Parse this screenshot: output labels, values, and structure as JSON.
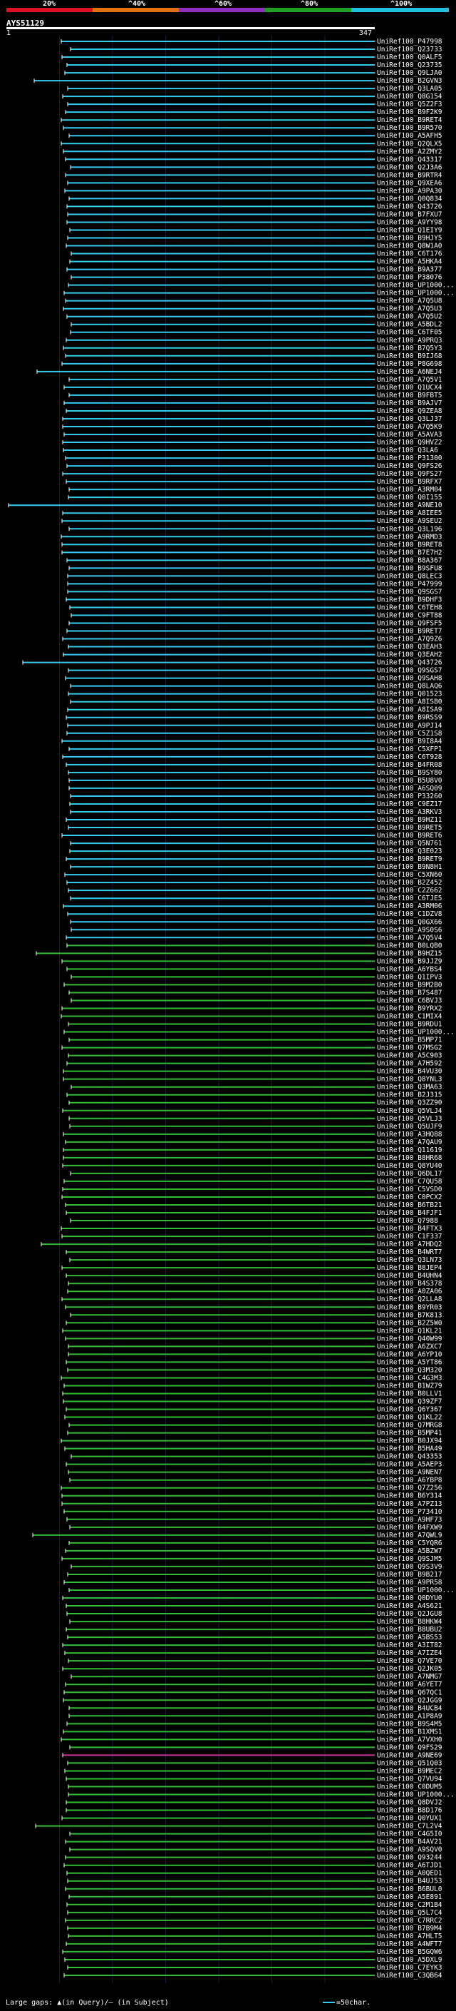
{
  "legend": {
    "labels": [
      "20%",
      "^40%",
      "^60%",
      "^80%",
      "^100%"
    ],
    "colors": [
      "#e01020",
      "#e07010",
      "#9030c0",
      "#20a020",
      "#20c0e0"
    ]
  },
  "query": {
    "id": "AYS51129",
    "start": "1",
    "end": "347"
  },
  "footer": {
    "gaps_text": "Large gaps: ▲(in Query)/— (in Subject)",
    "scale_text": "=50char."
  },
  "colors": {
    "cyan": "#33ccee",
    "green": "#33bb33",
    "magenta": "#cc3399",
    "line": "#ffffff"
  },
  "hits": [
    "UniRef100_P47998",
    "UniRef100_Q23733",
    "UniRef100_Q0ALF5",
    "UniRef100_Q23735",
    "UniRef100_Q9LJA0",
    "UniRef100_B2GVN3",
    "UniRef100_Q3LA05",
    "UniRef100_Q8G154",
    "UniRef100_Q5Z2F3",
    "UniRef100_B9F2K9",
    "UniRef100_B9RET4",
    "UniRef100_B9R570",
    "UniRef100_A5AFH5",
    "UniRef100_Q2QLX5",
    "UniRef100_A2ZMY2",
    "UniRef100_Q43317",
    "UniRef100_Q2J3A6",
    "UniRef100_B9RTR4",
    "UniRef100_Q9XEA6",
    "UniRef100_A9PA30",
    "UniRef100_Q0Q834",
    "UniRef100_Q43726",
    "UniRef100_B7FXU7",
    "UniRef100_A9YY98",
    "UniRef100_Q1EIY9",
    "UniRef100_B9HJY5",
    "UniRef100_Q8W1A0",
    "UniRef100_C6T176",
    "UniRef100_A5HKA4",
    "UniRef100_B9A377",
    "UniRef100_P38076",
    "UniRef100_UP1000...",
    "UniRef100_UP1000...",
    "UniRef100_A7Q5U8",
    "UniRef100_A7Q5U3",
    "UniRef100_A7Q5U2",
    "UniRef100_A5BDL2",
    "UniRef100_C6TF05",
    "UniRef100_A9PRQ3",
    "UniRef100_B7Q5Y3",
    "UniRef100_B9IJ68",
    "UniRef100_P8G698",
    "UniRef100_A6NEJ4",
    "UniRef100_A7Q5V1",
    "UniRef100_Q1UCX4",
    "UniRef100_B9FBT5",
    "UniRef100_B9AJV7",
    "UniRef100_Q9ZEA8",
    "UniRef100_Q3LJ37",
    "UniRef100_A7Q5K9",
    "UniRef100_A5AVA3",
    "UniRef100_Q9HVZ2",
    "UniRef100_Q3LA6",
    "UniRef100_P31300",
    "UniRef100_Q9FS26",
    "UniRef100_Q9FS27",
    "UniRef100_B9RFX7",
    "UniRef100_A3RM04",
    "UniRef100_Q0I155",
    "UniRef100_A9NE10",
    "UniRef100_A8IEE5",
    "UniRef100_A9SEU2",
    "UniRef100_Q3L196",
    "UniRef100_A9RMD3",
    "UniRef100_B9RET8",
    "UniRef100_B7E7H2",
    "UniRef100_B8A367",
    "UniRef100_B9SFU8",
    "UniRef100_Q8LEC3",
    "UniRef100_P47999",
    "UniRef100_Q9SGS7",
    "UniRef100_B9DHF3",
    "UniRef100_C6TEH8",
    "UniRef100_C9FT88",
    "UniRef100_Q9FSF5",
    "UniRef100_B9RET7",
    "UniRef100_A7Q9Z6",
    "UniRef100_Q3EAH3",
    "UniRef100_Q3EAH2",
    "UniRef100_Q43726",
    "UniRef100_Q9SGS7",
    "UniRef100_Q9SAH8",
    "UniRef100_Q8LAQ6",
    "UniRef100_Q01523",
    "UniRef100_A8ISB0",
    "UniRef100_A8ISA9",
    "UniRef100_B9RSS9",
    "UniRef100_A9PJ14",
    "UniRef100_C5Z1S8",
    "UniRef100_B9I8A4",
    "UniRef100_C5XFP1",
    "UniRef100_C6T928",
    "UniRef100_B4FR08",
    "UniRef100_B9SY80",
    "UniRef100_B5U8V0",
    "UniRef100_A6SQ09",
    "UniRef100_P33260",
    "UniRef100_C9EZ17",
    "UniRef100_A3RKV3",
    "UniRef100_B9HZ11",
    "UniRef100_B9RET5",
    "UniRef100_B9RET6",
    "UniRef100_Q5N761",
    "UniRef100_Q3E023",
    "UniRef100_B9RET9",
    "UniRef100_B9N8H1",
    "UniRef100_C5XN60",
    "UniRef100_B2Z452",
    "UniRef100_C2Z662",
    "UniRef100_C6TJE5",
    "UniRef100_A3RM06",
    "UniRef100_C1DZV8",
    "UniRef100_Q0GX66",
    "UniRef100_A9S0S6",
    "UniRef100_A7Q5V4",
    "UniRef100_B0LQB0",
    "UniRef100_B9HZ15",
    "UniRef100_B9JJZ9",
    "UniRef100_A6YBS4",
    "UniRef100_Q1IPV3",
    "UniRef100_B9M2B0",
    "UniRef100_B7S487",
    "UniRef100_C6BVJ3",
    "UniRef100_B9YRX2",
    "UniRef100_C1MIX4",
    "UniRef100_B9RDU1",
    "UniRef100_UP1000...",
    "UniRef100_B5MP71",
    "UniRef100_Q7MSG2",
    "UniRef100_A5C903",
    "UniRef100_A7H592",
    "UniRef100_B4VU30",
    "UniRef100_Q8YNL3",
    "UniRef100_Q3MA63",
    "UniRef100_B2J315",
    "UniRef100_Q3ZZ90",
    "UniRef100_Q5VLJ4",
    "UniRef100_Q5VLJ3",
    "UniRef100_Q5UJF9",
    "UniRef100_A3HQ88",
    "UniRef100_A7QAU9",
    "UniRef100_Q11619",
    "UniRef100_B8HR68",
    "UniRef100_Q8YU40",
    "UniRef100_Q6DL17",
    "UniRef100_C7QU58",
    "UniRef100_C5VSD0",
    "UniRef100_C0PCX2",
    "UniRef100_B6TB21",
    "UniRef100_B4FJF1",
    "UniRef100_Q7988",
    "UniRef100_B4FTX3",
    "UniRef100_C1F337",
    "UniRef100_A7HDQ2",
    "UniRef100_B4WRT7",
    "UniRef100_Q3LN73",
    "UniRef100_B8JEP4",
    "UniRef100_B4UHN4",
    "UniRef100_B4S378",
    "UniRef100_A0ZA06",
    "UniRef100_Q2LLA8",
    "UniRef100_B9YR03",
    "UniRef100_B7K813",
    "UniRef100_B2Z5W0",
    "UniRef100_Q1KL21",
    "UniRef100_Q40W99",
    "UniRef100_A6ZXC7",
    "UniRef100_A6YP10",
    "UniRef100_A5YT86",
    "UniRef100_Q3M320",
    "UniRef100_C4G3M3",
    "UniRef100_B1WZ79",
    "UniRef100_B0LLV1",
    "UniRef100_Q39ZF7",
    "UniRef100_Q6Y367",
    "UniRef100_Q1KL22",
    "UniRef100_Q7MRG8",
    "UniRef100_B5MP41",
    "UniRef100_B0JX94",
    "UniRef100_B5HA49",
    "UniRef100_Q43353",
    "UniRef100_A5AEP3",
    "UniRef100_A9NEN7",
    "UniRef100_A6YBP8",
    "UniRef100_Q7Z256",
    "UniRef100_B6Y314",
    "UniRef100_A7PZ13",
    "UniRef100_P73410",
    "UniRef100_A9HF73",
    "UniRef100_B4FXW9",
    "UniRef100_A7QWL9",
    "UniRef100_C5YQR6",
    "UniRef100_A5BZW7",
    "UniRef100_Q9SJM5",
    "UniRef100_Q9S3V9",
    "UniRef100_B9B217",
    "UniRef100_A9PR58",
    "UniRef100_UP1000...",
    "UniRef100_Q0DYU0",
    "UniRef100_A4S621",
    "UniRef100_Q2JGU8",
    "UniRef100_B8HKW4",
    "UniRef100_B8UBU2",
    "UniRef100_A5BS53",
    "UniRef100_A3IT82",
    "UniRef100_A7IZE4",
    "UniRef100_Q7VE70",
    "UniRef100_Q2JK05",
    "UniRef100_A7NMG7",
    "UniRef100_A6YET7",
    "UniRef100_Q67QC1",
    "UniRef100_Q2JGG9",
    "UniRef100_B4UCB4",
    "UniRef100_A1P8A9",
    "UniRef100_B9S4M5",
    "UniRef100_B1XMS1",
    "UniRef100_A7VXH0",
    "UniRef100_Q9FS29",
    "UniRef100_A9NE69",
    "UniRef100_Q51Q03",
    "UniRef100_B9MEC2",
    "UniRef100_Q7VU94",
    "UniRef100_C0DUM5",
    "UniRef100_UP1000...",
    "UniRef100_Q8DVJ2",
    "UniRef100_B8D176",
    "UniRef100_Q0YUX1",
    "UniRef100_C7L2V4",
    "UniRef100_C4G5I0",
    "UniRef100_B4AV21",
    "UniRef100_A9SQV0",
    "UniRef100_Q93244",
    "UniRef100_A6TJD1",
    "UniRef100_A0QED1",
    "UniRef100_B4UJ53",
    "UniRef100_B6BUL0",
    "UniRef100_A5E891",
    "UniRef100_C2M1B4",
    "UniRef100_Q5L7C4",
    "UniRef100_C7RRC2",
    "UniRef100_B7B9M4",
    "UniRef100_A7HLT5",
    "UniRef100_A4WFT7",
    "UniRef100_B5GQW6",
    "UniRef100_A5DXL9",
    "UniRef100_C7EYK3",
    "UniRef100_C3QB64"
  ]
}
